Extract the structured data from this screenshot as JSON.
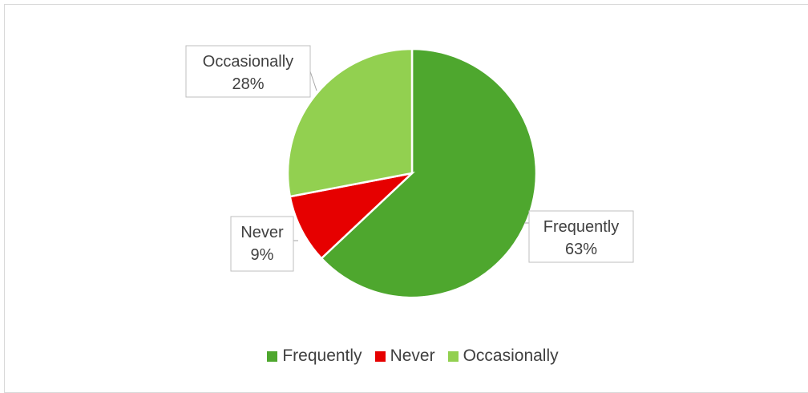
{
  "chart_data": {
    "type": "pie",
    "slices": [
      {
        "name": "Frequently",
        "value": 63,
        "label": "63%",
        "color": "#4ea72e"
      },
      {
        "name": "Never",
        "value": 9,
        "label": "9%",
        "color": "#e60000"
      },
      {
        "name": "Occasionally",
        "value": 28,
        "label": "28%",
        "color": "#92d050"
      }
    ],
    "start_angle_deg": 0,
    "direction": "clockwise",
    "legend_position": "bottom",
    "data_labels": "outside-callout"
  }
}
